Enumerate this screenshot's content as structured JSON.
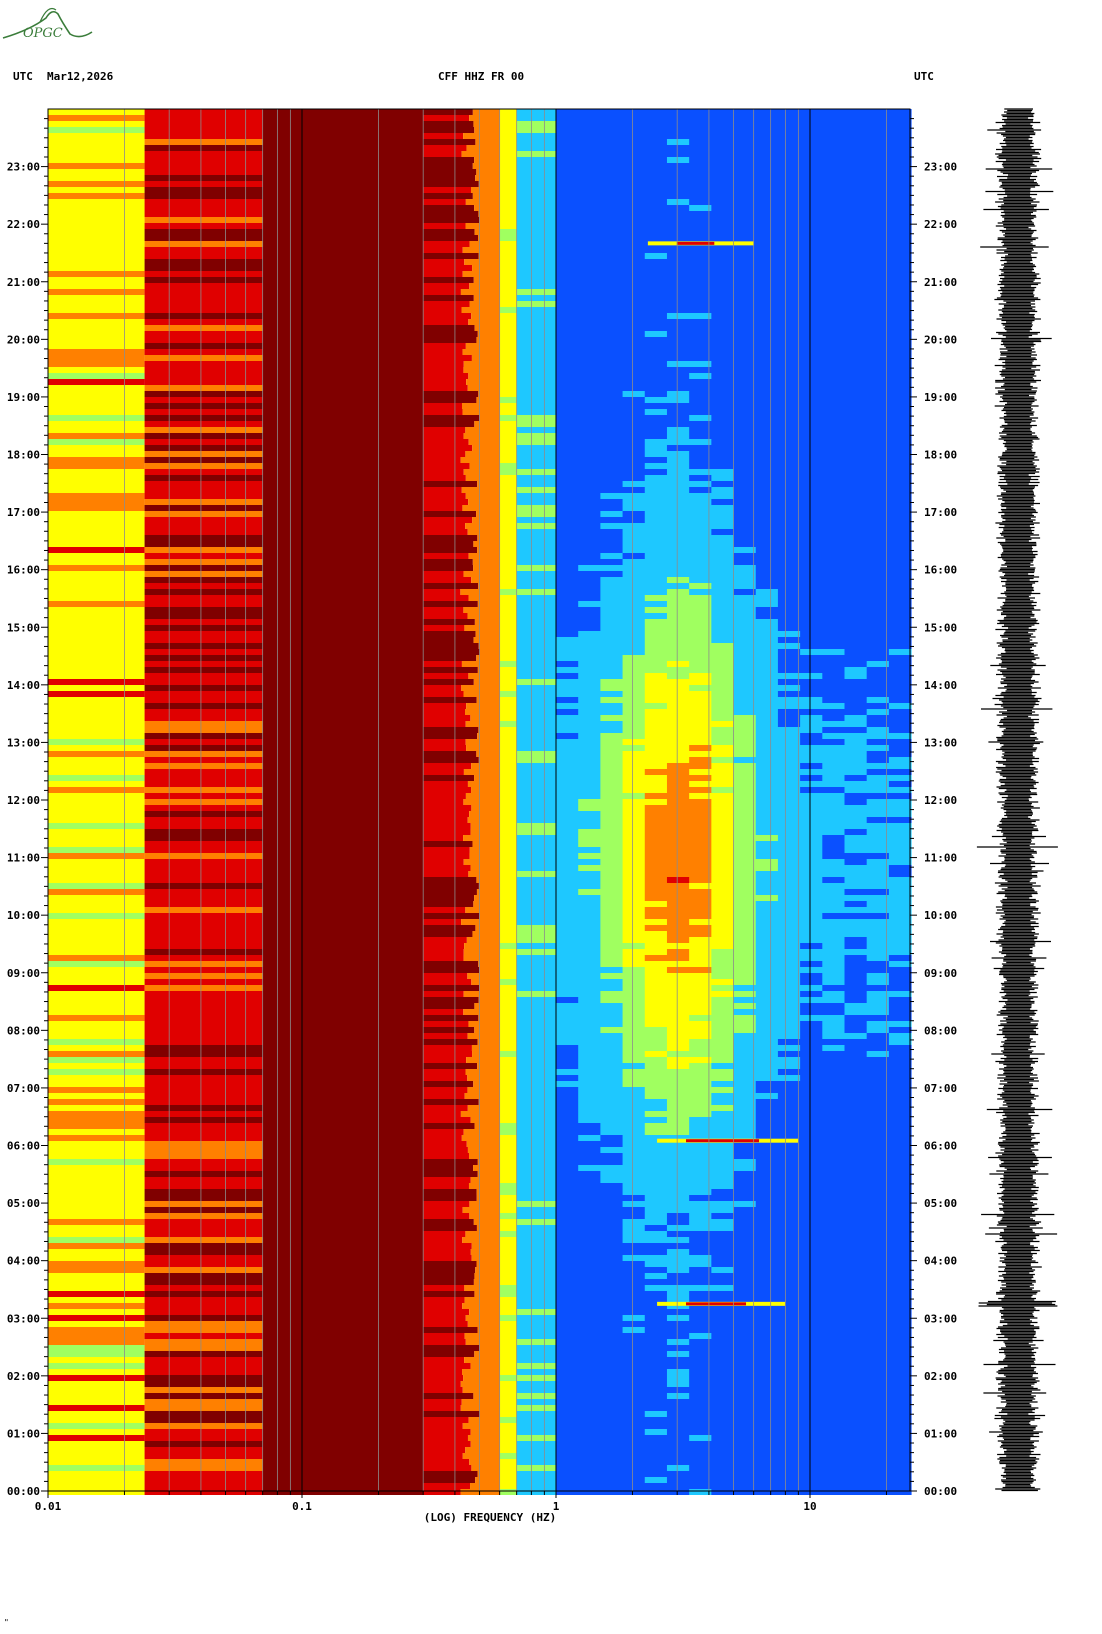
{
  "header": {
    "left_utc": "UTC",
    "date": "Mar12,2026",
    "station": "CFF HHZ FR 00",
    "right_utc": "UTC"
  },
  "logo": {
    "text": "OPGC",
    "color": "#3b7d3b"
  },
  "footer_mark": "\"",
  "chart_data": {
    "type": "heatmap",
    "title": "CFF HHZ FR 00",
    "xlabel": "(LOG) FREQUENCY (HZ)",
    "ylabel": "UTC",
    "x_scale": "log",
    "x_range_hz": [
      0.01,
      25
    ],
    "x_tick_labels": [
      "0.01",
      "0.1",
      "1",
      "10"
    ],
    "x_tick_values": [
      0.01,
      0.1,
      1,
      10
    ],
    "y_range_hours": [
      0,
      24
    ],
    "y_tick_labels": [
      "00:00",
      "01:00",
      "02:00",
      "03:00",
      "04:00",
      "05:00",
      "06:00",
      "07:00",
      "08:00",
      "09:00",
      "10:00",
      "11:00",
      "12:00",
      "13:00",
      "14:00",
      "15:00",
      "16:00",
      "17:00",
      "18:00",
      "19:00",
      "20:00",
      "21:00",
      "22:00",
      "23:00"
    ],
    "colormap": [
      "#0000c8",
      "#0a50ff",
      "#1ec8ff",
      "#a0ff60",
      "#ffff00",
      "#ff8000",
      "#e00000",
      "#800000"
    ],
    "bands": [
      {
        "from_hz": 0.01,
        "to_hz": 0.024,
        "level": "yellow-orange"
      },
      {
        "from_hz": 0.024,
        "to_hz": 0.07,
        "level": "red-orange"
      },
      {
        "from_hz": 0.07,
        "to_hz": 0.3,
        "level": "dark-red"
      },
      {
        "from_hz": 0.3,
        "to_hz": 0.6,
        "level": "red-yellow"
      },
      {
        "from_hz": 0.6,
        "to_hz": 1.0,
        "level": "cyan"
      },
      {
        "from_hz": 1.0,
        "to_hz": 25,
        "level": "blue"
      }
    ],
    "events": [
      {
        "time": "03:15",
        "from_hz": 2.5,
        "to_hz": 8
      },
      {
        "time": "06:05",
        "from_hz": 2.5,
        "to_hz": 9
      },
      {
        "time": "21:40",
        "from_hz": 2.3,
        "to_hz": 6
      }
    ],
    "grid": true,
    "seismogram": true
  }
}
